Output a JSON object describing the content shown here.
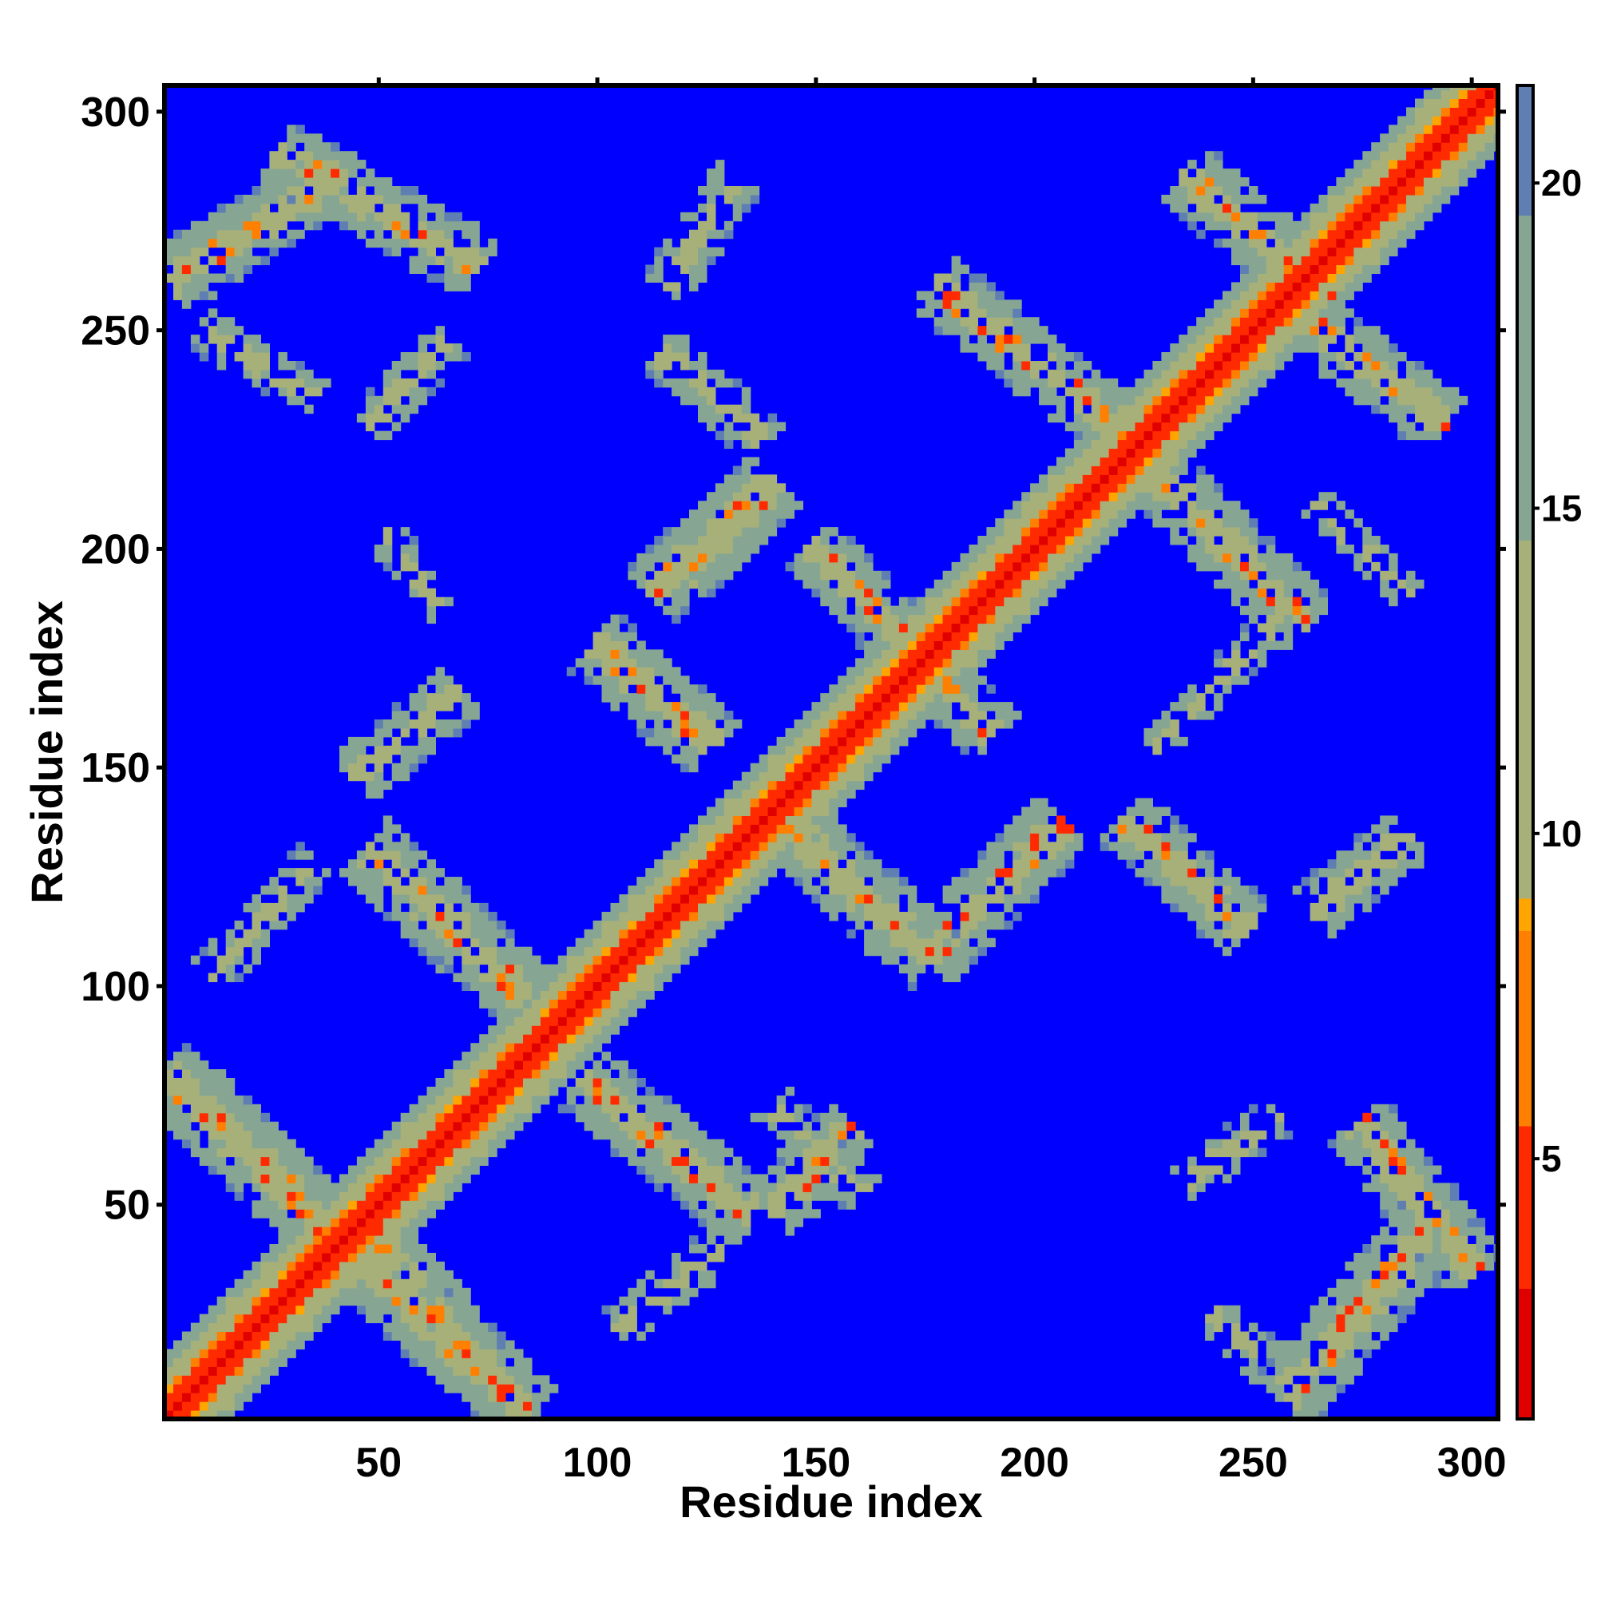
{
  "chart_data": {
    "type": "heatmap",
    "title": "",
    "xlabel": "Residue index",
    "ylabel": "Residue index",
    "xlim": [
      1,
      306
    ],
    "ylim": [
      1,
      306
    ],
    "x_ticks": [
      50,
      100,
      150,
      200,
      250,
      300
    ],
    "y_ticks": [
      50,
      100,
      150,
      200,
      250,
      300
    ],
    "colorbar": {
      "ticks": [
        5,
        10,
        15,
        20
      ],
      "range": [
        1,
        21.5
      ],
      "colors": [
        {
          "value": 1.0,
          "color": "#e00000"
        },
        {
          "value": 3.0,
          "color": "#ff2a00"
        },
        {
          "value": 5.5,
          "color": "#ff7f00"
        },
        {
          "value": 8.5,
          "color": "#ffa500"
        },
        {
          "value": 9.0,
          "color": "#a8b07a"
        },
        {
          "value": 14.5,
          "color": "#86a693"
        },
        {
          "value": 19.5,
          "color": "#5f7fb3"
        },
        {
          "value": 21.5,
          "color": "#0000ff"
        }
      ]
    },
    "background_color": "#0000ff",
    "grid": false,
    "legend": "none",
    "description_note": "",
    "diagonal": {
      "center": 1.0,
      "width": 10
    },
    "contact_bands": [
      {
        "from": [
          3,
          78
        ],
        "to": [
          82,
          4
        ],
        "strength": 0.95
      },
      {
        "from": [
          45,
          48
        ],
        "to": [
          78,
          8
        ],
        "strength": 0.8
      },
      {
        "from": [
          48,
          131
        ],
        "to": [
          83,
          98
        ],
        "strength": 0.9
      },
      {
        "from": [
          45,
          148
        ],
        "to": [
          68,
          167
        ],
        "strength": 0.7
      },
      {
        "from": [
          3,
          262
        ],
        "to": [
          40,
          285
        ],
        "strength": 0.85
      },
      {
        "from": [
          28,
          290
        ],
        "to": [
          72,
          265
        ],
        "strength": 0.8
      },
      {
        "from": [
          10,
          250
        ],
        "to": [
          35,
          235
        ],
        "strength": 0.45
      },
      {
        "from": [
          48,
          228
        ],
        "to": [
          66,
          248
        ],
        "strength": 0.5
      },
      {
        "from": [
          100,
          178
        ],
        "to": [
          126,
          155
        ],
        "strength": 0.9
      },
      {
        "from": [
          120,
          195
        ],
        "to": [
          140,
          215
        ],
        "strength": 0.9
      },
      {
        "from": [
          113,
          190
        ],
        "to": [
          135,
          210
        ],
        "strength": 0.85
      },
      {
        "from": [
          98,
          78
        ],
        "to": [
          135,
          48
        ],
        "strength": 0.9
      },
      {
        "from": [
          140,
          48
        ],
        "to": [
          158,
          68
        ],
        "strength": 0.8
      },
      {
        "from": [
          142,
          138
        ],
        "to": [
          176,
          107
        ],
        "strength": 0.9
      },
      {
        "from": [
          176,
          107
        ],
        "to": [
          206,
          137
        ],
        "strength": 0.85
      },
      {
        "from": [
          221,
          138
        ],
        "to": [
          248,
          113
        ],
        "strength": 0.8
      },
      {
        "from": [
          264,
          117
        ],
        "to": [
          285,
          134
        ],
        "strength": 0.7
      },
      {
        "from": [
          150,
          200
        ],
        "to": [
          190,
          158
        ],
        "strength": 0.8
      },
      {
        "from": [
          178,
          260
        ],
        "to": [
          220,
          227
        ],
        "strength": 0.8
      },
      {
        "from": [
          226,
          218
        ],
        "to": [
          262,
          183
        ],
        "strength": 0.85
      },
      {
        "from": [
          235,
          285
        ],
        "to": [
          267,
          259
        ],
        "strength": 0.85
      },
      {
        "from": [
          263,
          252
        ],
        "to": [
          293,
          229
        ],
        "strength": 0.8
      },
      {
        "from": [
          258,
          6
        ],
        "to": [
          290,
          44
        ],
        "strength": 0.9
      },
      {
        "from": [
          275,
          68
        ],
        "to": [
          300,
          35
        ],
        "strength": 0.85
      },
      {
        "from": [
          116,
          260
        ],
        "to": [
          132,
          285
        ],
        "strength": 0.55
      },
      {
        "from": [
          115,
          245
        ],
        "to": [
          138,
          225
        ],
        "strength": 0.55
      },
      {
        "from": [
          140,
          73
        ],
        "to": [
          160,
          53
        ],
        "strength": 0.45
      },
      {
        "from": [
          105,
          22
        ],
        "to": [
          128,
          40
        ],
        "strength": 0.45
      },
      {
        "from": [
          235,
          55
        ],
        "to": [
          255,
          70
        ],
        "strength": 0.45
      },
      {
        "from": [
          240,
          25
        ],
        "to": [
          258,
          10
        ],
        "strength": 0.45
      },
      {
        "from": [
          12,
          103
        ],
        "to": [
          35,
          128
        ],
        "strength": 0.45
      },
      {
        "from": [
          52,
          203
        ],
        "to": [
          65,
          185
        ],
        "strength": 0.35
      },
      {
        "from": [
          228,
          155
        ],
        "to": [
          255,
          183
        ],
        "strength": 0.35
      },
      {
        "from": [
          265,
          210
        ],
        "to": [
          285,
          190
        ],
        "strength": 0.35
      }
    ]
  }
}
